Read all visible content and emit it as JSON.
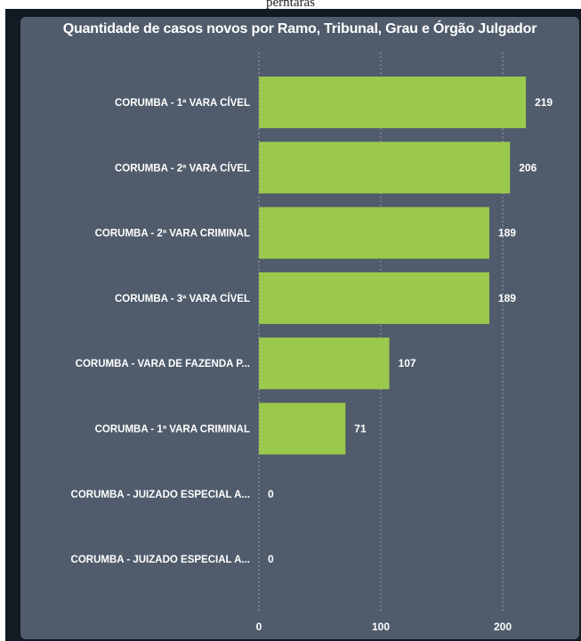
{
  "header_text": "perntaras",
  "chart_data": {
    "type": "bar",
    "orientation": "horizontal",
    "title": "Quantidade de casos novos por Ramo, Tribunal, Grau e Órgão Julgador",
    "categories": [
      "CORUMBA - 1ª VARA CÍVEL",
      "CORUMBA - 2ª VARA CÍVEL",
      "CORUMBA - 2ª VARA CRIMINAL",
      "CORUMBA - 3ª VARA CÍVEL",
      "CORUMBA - VARA DE FAZENDA P...",
      "CORUMBA - 1ª VARA CRIMINAL",
      "CORUMBA - JUIZADO ESPECIAL A...",
      "CORUMBA - JUIZADO ESPECIAL A..."
    ],
    "values": [
      219,
      206,
      189,
      189,
      107,
      71,
      0,
      0
    ],
    "xticks": [
      "0",
      "100",
      "200"
    ],
    "xtick_values": [
      0,
      100,
      200
    ],
    "xlim": [
      0,
      240
    ],
    "grid": true,
    "colors": {
      "bar": "#9bc94d",
      "panel": "#505c6c",
      "frame": "#121a24",
      "text": "#ffffff",
      "grid": "#aeb6c2"
    }
  }
}
